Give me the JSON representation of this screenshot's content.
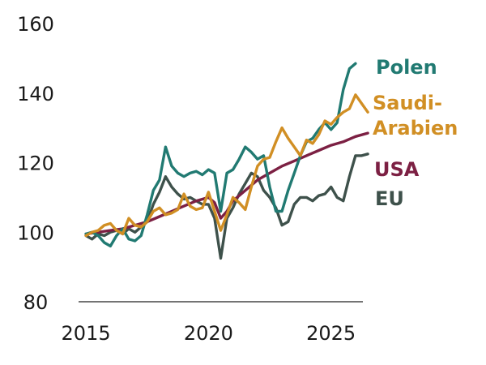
{
  "chart_data": {
    "type": "line",
    "title": "",
    "xlabel": "",
    "ylabel": "",
    "xlim": [
      2014.7,
      2026.3
    ],
    "ylim": [
      80,
      160
    ],
    "x_ticks": [
      2015,
      2020,
      2025
    ],
    "y_ticks": [
      80,
      100,
      120,
      140,
      160
    ],
    "grid": false,
    "legend": "right, at line ends",
    "series": [
      {
        "name": "EU",
        "color": "#3e514b",
        "points": [
          [
            2015.0,
            99.0
          ],
          [
            2015.25,
            98.0
          ],
          [
            2015.5,
            99.5
          ],
          [
            2015.75,
            99.0
          ],
          [
            2016.0,
            100.0
          ],
          [
            2016.25,
            100.5
          ],
          [
            2016.5,
            99.5
          ],
          [
            2016.75,
            101.0
          ],
          [
            2017.0,
            100.0
          ],
          [
            2017.25,
            101.5
          ],
          [
            2017.5,
            103.0
          ],
          [
            2017.75,
            108.0
          ],
          [
            2018.0,
            111.5
          ],
          [
            2018.25,
            116.0
          ],
          [
            2018.5,
            113.0
          ],
          [
            2018.75,
            111.0
          ],
          [
            2019.0,
            109.5
          ],
          [
            2019.25,
            110.0
          ],
          [
            2019.5,
            109.0
          ],
          [
            2019.75,
            108.0
          ],
          [
            2020.0,
            108.0
          ],
          [
            2020.25,
            104.0
          ],
          [
            2020.5,
            92.5
          ],
          [
            2020.75,
            104.0
          ],
          [
            2021.0,
            107.0
          ],
          [
            2021.25,
            111.0
          ],
          [
            2021.5,
            114.0
          ],
          [
            2021.75,
            117.0
          ],
          [
            2022.0,
            116.0
          ],
          [
            2022.25,
            112.0
          ],
          [
            2022.5,
            110.0
          ],
          [
            2022.75,
            107.0
          ],
          [
            2023.0,
            102.0
          ],
          [
            2023.25,
            103.0
          ],
          [
            2023.5,
            108.0
          ],
          [
            2023.75,
            110.0
          ],
          [
            2024.0,
            110.0
          ],
          [
            2024.25,
            109.0
          ],
          [
            2024.5,
            110.5
          ],
          [
            2024.75,
            111.0
          ],
          [
            2025.0,
            113.0
          ],
          [
            2025.25,
            110.0
          ],
          [
            2025.5,
            109.0
          ],
          [
            2025.75,
            116.0
          ],
          [
            2026.0,
            122.0
          ],
          [
            2026.25,
            122.0
          ],
          [
            2026.5,
            122.5
          ]
        ]
      },
      {
        "name": "USA",
        "color": "#7c2043",
        "points": [
          [
            2015.0,
            99.5
          ],
          [
            2015.5,
            100.0
          ],
          [
            2016.0,
            100.5
          ],
          [
            2016.5,
            101.0
          ],
          [
            2017.0,
            102.0
          ],
          [
            2017.5,
            103.0
          ],
          [
            2018.0,
            104.5
          ],
          [
            2018.5,
            106.0
          ],
          [
            2019.0,
            107.5
          ],
          [
            2019.5,
            109.0
          ],
          [
            2020.0,
            110.0
          ],
          [
            2020.25,
            108.5
          ],
          [
            2020.5,
            104.0
          ],
          [
            2020.75,
            106.0
          ],
          [
            2021.0,
            109.0
          ],
          [
            2021.5,
            112.0
          ],
          [
            2022.0,
            115.0
          ],
          [
            2022.5,
            117.0
          ],
          [
            2023.0,
            119.0
          ],
          [
            2023.5,
            120.5
          ],
          [
            2024.0,
            122.0
          ],
          [
            2024.5,
            123.5
          ],
          [
            2025.0,
            125.0
          ],
          [
            2025.5,
            126.0
          ],
          [
            2026.0,
            127.5
          ],
          [
            2026.5,
            128.5
          ]
        ]
      },
      {
        "name": "Polen",
        "color": "#217a72",
        "points": [
          [
            2015.0,
            99.5
          ],
          [
            2015.25,
            100.0
          ],
          [
            2015.5,
            99.0
          ],
          [
            2015.75,
            97.0
          ],
          [
            2016.0,
            96.0
          ],
          [
            2016.25,
            99.0
          ],
          [
            2016.5,
            101.0
          ],
          [
            2016.75,
            98.0
          ],
          [
            2017.0,
            97.5
          ],
          [
            2017.25,
            99.0
          ],
          [
            2017.5,
            105.0
          ],
          [
            2017.75,
            112.0
          ],
          [
            2018.0,
            115.0
          ],
          [
            2018.25,
            124.5
          ],
          [
            2018.5,
            119.0
          ],
          [
            2018.75,
            117.0
          ],
          [
            2019.0,
            116.0
          ],
          [
            2019.25,
            117.0
          ],
          [
            2019.5,
            117.5
          ],
          [
            2019.75,
            116.5
          ],
          [
            2020.0,
            118.0
          ],
          [
            2020.25,
            117.0
          ],
          [
            2020.5,
            106.0
          ],
          [
            2020.75,
            117.0
          ],
          [
            2021.0,
            118.0
          ],
          [
            2021.25,
            121.0
          ],
          [
            2021.5,
            124.5
          ],
          [
            2021.75,
            123.0
          ],
          [
            2022.0,
            121.0
          ],
          [
            2022.25,
            122.0
          ],
          [
            2022.5,
            113.0
          ],
          [
            2022.75,
            106.0
          ],
          [
            2023.0,
            106.0
          ],
          [
            2023.25,
            112.0
          ],
          [
            2023.5,
            117.0
          ],
          [
            2023.75,
            122.0
          ],
          [
            2024.0,
            126.0
          ],
          [
            2024.25,
            127.0
          ],
          [
            2024.5,
            129.5
          ],
          [
            2024.75,
            131.5
          ],
          [
            2025.0,
            129.5
          ],
          [
            2025.25,
            131.5
          ],
          [
            2025.5,
            141.0
          ],
          [
            2025.75,
            147.0
          ],
          [
            2026.0,
            148.5
          ]
        ]
      },
      {
        "name": "Saudi-\nArabien",
        "color": "#d18f24",
        "points": [
          [
            2015.0,
            99.0
          ],
          [
            2015.25,
            100.0
          ],
          [
            2015.5,
            100.5
          ],
          [
            2015.75,
            102.0
          ],
          [
            2016.0,
            102.5
          ],
          [
            2016.25,
            100.5
          ],
          [
            2016.5,
            99.5
          ],
          [
            2016.75,
            104.0
          ],
          [
            2017.0,
            102.0
          ],
          [
            2017.25,
            101.5
          ],
          [
            2017.5,
            103.0
          ],
          [
            2017.75,
            106.0
          ],
          [
            2018.0,
            107.0
          ],
          [
            2018.25,
            105.0
          ],
          [
            2018.5,
            105.5
          ],
          [
            2018.75,
            106.5
          ],
          [
            2019.0,
            111.0
          ],
          [
            2019.25,
            107.5
          ],
          [
            2019.5,
            106.5
          ],
          [
            2019.75,
            107.0
          ],
          [
            2020.0,
            111.5
          ],
          [
            2020.25,
            106.0
          ],
          [
            2020.5,
            100.5
          ],
          [
            2020.75,
            105.0
          ],
          [
            2021.0,
            110.0
          ],
          [
            2021.25,
            108.5
          ],
          [
            2021.5,
            106.5
          ],
          [
            2021.75,
            113.0
          ],
          [
            2022.0,
            119.0
          ],
          [
            2022.25,
            121.0
          ],
          [
            2022.5,
            121.5
          ],
          [
            2022.75,
            126.0
          ],
          [
            2023.0,
            130.0
          ],
          [
            2023.25,
            127.0
          ],
          [
            2023.5,
            124.5
          ],
          [
            2023.75,
            122.0
          ],
          [
            2024.0,
            126.5
          ],
          [
            2024.25,
            125.5
          ],
          [
            2024.5,
            128.0
          ],
          [
            2024.75,
            132.0
          ],
          [
            2025.0,
            131.0
          ],
          [
            2025.25,
            133.0
          ],
          [
            2025.5,
            134.5
          ],
          [
            2025.75,
            135.5
          ],
          [
            2026.0,
            139.5
          ],
          [
            2026.25,
            137.0
          ],
          [
            2026.5,
            134.5
          ]
        ]
      }
    ]
  }
}
